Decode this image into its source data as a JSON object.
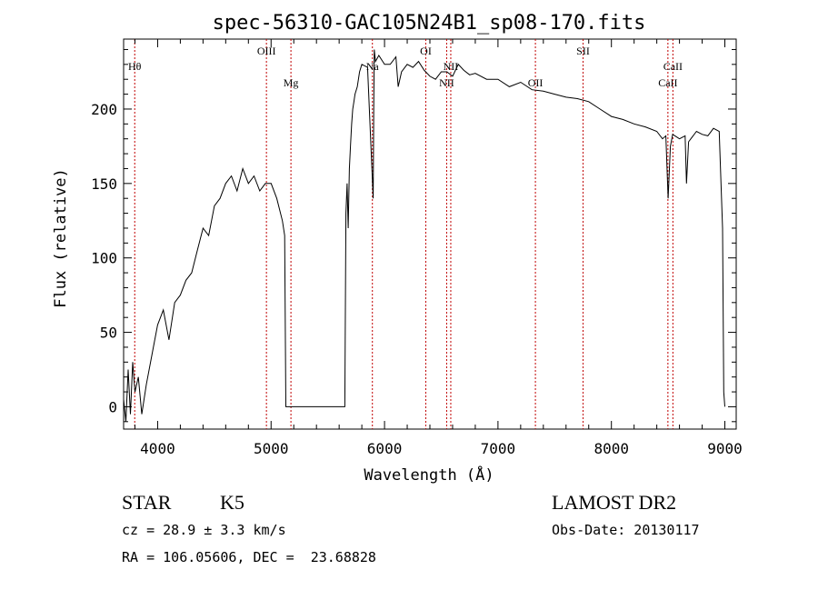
{
  "chart_data": {
    "type": "line",
    "title": "spec-56310-GAC105N24B1_sp08-170.fits",
    "xlabel": "Wavelength (Å)",
    "ylabel": "Flux (relative)",
    "xlim": [
      3700,
      9100
    ],
    "ylim": [
      -15,
      247
    ],
    "grid": false,
    "xticks": [
      4000,
      5000,
      6000,
      7000,
      8000,
      9000
    ],
    "yticks": [
      0,
      50,
      100,
      150,
      200
    ],
    "series": [
      {
        "x": [
          3700,
          3720,
          3740,
          3760,
          3780,
          3800,
          3830,
          3860,
          3900,
          3950,
          4000,
          4050,
          4100,
          4150,
          4200,
          4250,
          4300,
          4350,
          4400,
          4450,
          4500,
          4550,
          4600,
          4650,
          4700,
          4750,
          4800,
          4850,
          4900,
          4950,
          5000,
          5050,
          5100,
          5120,
          5130,
          5140,
          5200,
          5300,
          5400,
          5500,
          5600,
          5650,
          5660,
          5670,
          5680,
          5690,
          5700,
          5710,
          5720,
          5730,
          5740,
          5760,
          5780,
          5800,
          5850,
          5900,
          5905,
          5910,
          5920,
          5950,
          6000,
          6050,
          6100,
          6120,
          6150,
          6200,
          6250,
          6300,
          6350,
          6400,
          6450,
          6500,
          6550,
          6600,
          6650,
          6700,
          6750,
          6800,
          6900,
          7000,
          7100,
          7200,
          7300,
          7400,
          7500,
          7600,
          7700,
          7800,
          7900,
          8000,
          8100,
          8200,
          8300,
          8400,
          8450,
          8480,
          8500,
          8520,
          8540,
          8560,
          8600,
          8650,
          8662,
          8680,
          8700,
          8750,
          8800,
          8850,
          8900,
          8950,
          8980,
          8990,
          9000
        ],
        "values": [
          5,
          -10,
          25,
          -5,
          30,
          10,
          20,
          -5,
          15,
          35,
          55,
          65,
          45,
          70,
          75,
          85,
          90,
          105,
          120,
          115,
          135,
          140,
          150,
          155,
          145,
          160,
          150,
          155,
          145,
          150,
          150,
          140,
          125,
          115,
          0,
          0,
          0,
          0,
          0,
          0,
          0,
          0,
          130,
          150,
          120,
          160,
          175,
          190,
          200,
          205,
          210,
          215,
          225,
          230,
          228,
          140,
          200,
          240,
          232,
          236,
          230,
          230,
          235,
          215,
          225,
          230,
          228,
          232,
          226,
          222,
          220,
          225,
          225,
          222,
          230,
          226,
          223,
          224,
          220,
          220,
          215,
          218,
          213,
          212,
          210,
          208,
          207,
          205,
          200,
          195,
          193,
          190,
          188,
          185,
          180,
          182,
          140,
          175,
          183,
          182,
          180,
          182,
          150,
          178,
          180,
          185,
          183,
          182,
          187,
          185,
          120,
          10,
          0
        ]
      }
    ],
    "annotations": [
      {
        "label": "Hθ",
        "x": 3798,
        "row": "upper"
      },
      {
        "label": "OIII",
        "x": 4959,
        "row": "top"
      },
      {
        "label": "Mg",
        "x": 5175,
        "row": "low"
      },
      {
        "label": "Na",
        "x": 5893,
        "row": "upper"
      },
      {
        "label": "OI",
        "x": 6364,
        "row": "top"
      },
      {
        "label": "NII",
        "x": 6548,
        "row": "low"
      },
      {
        "label": "NII",
        "x": 6584,
        "row": "upper"
      },
      {
        "label": "OII",
        "x": 7330,
        "row": "low"
      },
      {
        "label": "SII",
        "x": 7750,
        "row": "top"
      },
      {
        "label": "CaII",
        "x": 8498,
        "row": "low"
      },
      {
        "label": "CaII",
        "x": 8542,
        "row": "upper"
      }
    ]
  },
  "info": {
    "class": "STAR",
    "subclass": "K5",
    "survey": "LAMOST DR2",
    "cz": "cz = 28.9 ± 3.3 km/s",
    "obs_date": "Obs-Date: 20130117",
    "radec": "RA = 106.05606, DEC =  23.68828"
  }
}
